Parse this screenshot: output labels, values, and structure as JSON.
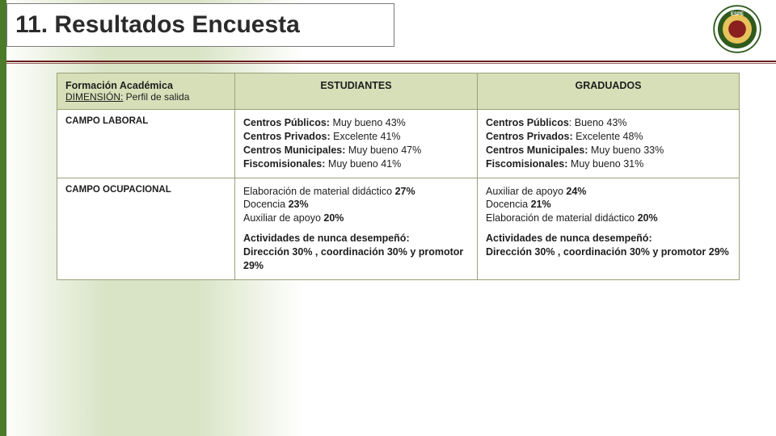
{
  "title": "11. Resultados Encuesta",
  "logo": {
    "name": "espe-logo"
  },
  "header": {
    "col1_line1": "Formación Académica",
    "col1_dim_label": "DIMENSIÓN:",
    "col1_dim_value": " Perfil de salida",
    "col2": "ESTUDIANTES",
    "col3": "GRADUADOS"
  },
  "rows": [
    {
      "label": "CAMPO LABORAL",
      "estudiantes": [
        {
          "b": "Centros Públicos:",
          "t": " Muy bueno 43%"
        },
        {
          "b": "Centros Privados:",
          "t": " Excelente 41%"
        },
        {
          "b": "Centros Municipales:",
          "t": " Muy bueno 47%"
        },
        {
          "b": "Fiscomisionales:",
          "t": " Muy bueno 41%"
        }
      ],
      "graduados": [
        {
          "b": "Centros Públicos",
          "t": ": Bueno 43%"
        },
        {
          "b": "Centros Privados:",
          "t": " Excelente 48%"
        },
        {
          "b": "Centros Municipales:",
          "t": " Muy bueno 33%"
        },
        {
          "b": "Fiscomisionales:",
          "t": " Muy bueno 31%"
        }
      ]
    },
    {
      "label": "CAMPO OCUPACIONAL",
      "estudiantes_block1": [
        "Elaboración de material didáctico <b>27%</b>",
        "Docencia <b>23%</b>",
        "Auxiliar de apoyo <b>20%</b>"
      ],
      "estudiantes_block2": [
        "<b>Actividades de nunca desempeñó:</b>",
        "<b>Dirección 30% , coordinación 30% y promotor 29%</b>"
      ],
      "graduados_block1": [
        "Auxiliar de apoyo <b>24%</b>",
        "Docencia <b>21%</b>",
        "Elaboración de material didáctico <b>20%</b>"
      ],
      "graduados_block2": [
        "<b>Actividades de nunca desempeñó:</b>",
        "<b>Dirección 30% , coordinación 30% y promotor 29%</b>"
      ]
    }
  ],
  "colors": {
    "left_edge": "#4b7a2a",
    "band": "#b9cd96",
    "header_bg": "#d6dfb8",
    "border": "#9aa07a",
    "accent_line": "#6b1e1e"
  }
}
